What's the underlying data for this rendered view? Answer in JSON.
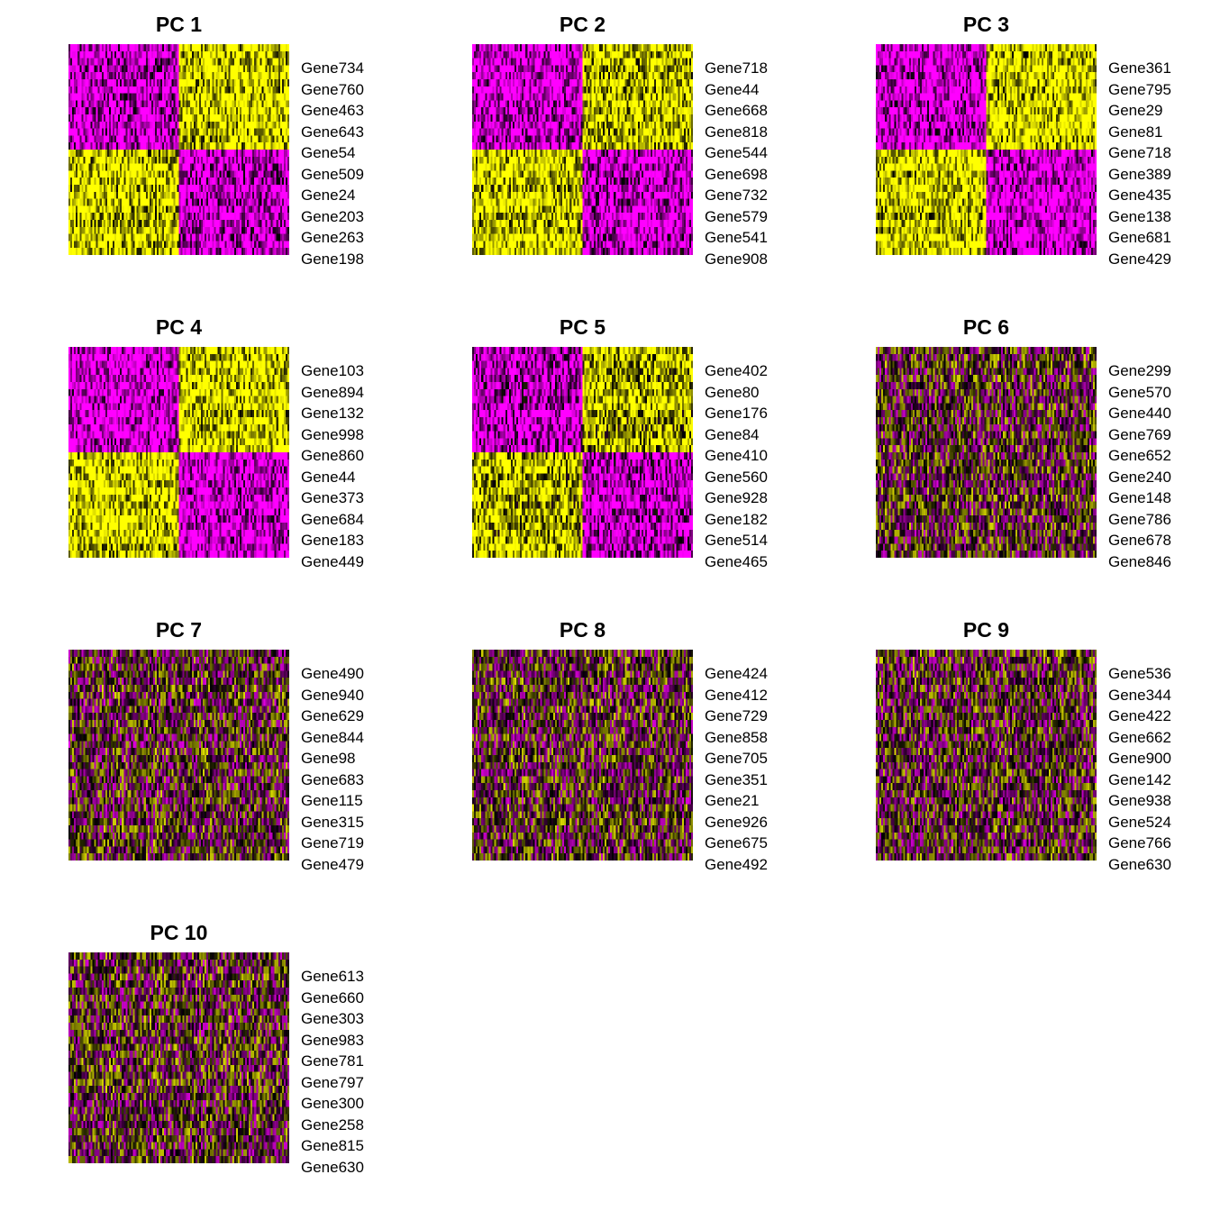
{
  "colors": {
    "low": "#FF00FF",
    "mid": "#000000",
    "high": "#FFFF00",
    "background": "#FFFFFF"
  },
  "chart_data": [
    {
      "type": "heatmap",
      "title": "PC 1",
      "genes": [
        "Gene734",
        "Gene760",
        "Gene463",
        "Gene643",
        "Gene54",
        "Gene509",
        "Gene24",
        "Gene203",
        "Gene263",
        "Gene198"
      ],
      "cell_groups": 2,
      "block_pattern": [
        [
          -1,
          1
        ],
        [
          -1,
          1
        ],
        [
          -1,
          1
        ],
        [
          -1,
          1
        ],
        [
          -1,
          1
        ],
        [
          1,
          -1
        ],
        [
          1,
          -1
        ],
        [
          1,
          -1
        ],
        [
          1,
          -1
        ],
        [
          1,
          -1
        ]
      ],
      "strength": 0.85
    },
    {
      "type": "heatmap",
      "title": "PC 2",
      "genes": [
        "Gene718",
        "Gene44",
        "Gene668",
        "Gene818",
        "Gene544",
        "Gene698",
        "Gene732",
        "Gene579",
        "Gene541",
        "Gene908"
      ],
      "cell_groups": 2,
      "block_pattern": [
        [
          -1,
          1
        ],
        [
          -1,
          1
        ],
        [
          -1,
          1
        ],
        [
          -1,
          1
        ],
        [
          -1,
          1
        ],
        [
          1,
          -1
        ],
        [
          1,
          -1
        ],
        [
          1,
          -1
        ],
        [
          1,
          -1
        ],
        [
          1,
          -1
        ]
      ],
      "strength": 0.85
    },
    {
      "type": "heatmap",
      "title": "PC 3",
      "genes": [
        "Gene361",
        "Gene795",
        "Gene29",
        "Gene81",
        "Gene718",
        "Gene389",
        "Gene435",
        "Gene138",
        "Gene681",
        "Gene429"
      ],
      "cell_groups": 2,
      "block_pattern": [
        [
          -1,
          1
        ],
        [
          -1,
          1
        ],
        [
          -1,
          1
        ],
        [
          -1,
          1
        ],
        [
          -1,
          1
        ],
        [
          1,
          -1
        ],
        [
          1,
          -1
        ],
        [
          1,
          -1
        ],
        [
          1,
          -1
        ],
        [
          1,
          -1
        ]
      ],
      "strength": 0.9
    },
    {
      "type": "heatmap",
      "title": "PC 4",
      "genes": [
        "Gene103",
        "Gene894",
        "Gene132",
        "Gene998",
        "Gene860",
        "Gene44",
        "Gene373",
        "Gene684",
        "Gene183",
        "Gene449"
      ],
      "cell_groups": 2,
      "block_pattern": [
        [
          -1,
          1
        ],
        [
          -1,
          1
        ],
        [
          -1,
          1
        ],
        [
          -1,
          1
        ],
        [
          -1,
          1
        ],
        [
          1,
          -1
        ],
        [
          1,
          -1
        ],
        [
          1,
          -1
        ],
        [
          1,
          -1
        ],
        [
          1,
          -1
        ]
      ],
      "strength": 0.9
    },
    {
      "type": "heatmap",
      "title": "PC 5",
      "genes": [
        "Gene402",
        "Gene80",
        "Gene176",
        "Gene84",
        "Gene410",
        "Gene560",
        "Gene928",
        "Gene182",
        "Gene514",
        "Gene465"
      ],
      "cell_groups": 2,
      "block_pattern": [
        [
          -1,
          1
        ],
        [
          -1,
          1
        ],
        [
          -1,
          1
        ],
        [
          -1,
          1
        ],
        [
          -1,
          1
        ],
        [
          1,
          -1
        ],
        [
          1,
          -1
        ],
        [
          1,
          -1
        ],
        [
          1,
          -1
        ],
        [
          1,
          -1
        ]
      ],
      "strength": 0.75
    },
    {
      "type": "heatmap",
      "title": "PC 6",
      "genes": [
        "Gene299",
        "Gene570",
        "Gene440",
        "Gene769",
        "Gene652",
        "Gene240",
        "Gene148",
        "Gene786",
        "Gene678",
        "Gene846"
      ],
      "cell_groups": 2,
      "block_pattern": null,
      "strength": 0.0
    },
    {
      "type": "heatmap",
      "title": "PC 7",
      "genes": [
        "Gene490",
        "Gene940",
        "Gene629",
        "Gene844",
        "Gene98",
        "Gene683",
        "Gene115",
        "Gene315",
        "Gene719",
        "Gene479"
      ],
      "cell_groups": 2,
      "block_pattern": null,
      "strength": 0.0
    },
    {
      "type": "heatmap",
      "title": "PC 8",
      "genes": [
        "Gene424",
        "Gene412",
        "Gene729",
        "Gene858",
        "Gene705",
        "Gene351",
        "Gene21",
        "Gene926",
        "Gene675",
        "Gene492"
      ],
      "cell_groups": 2,
      "block_pattern": null,
      "strength": 0.0
    },
    {
      "type": "heatmap",
      "title": "PC 9",
      "genes": [
        "Gene536",
        "Gene344",
        "Gene422",
        "Gene662",
        "Gene900",
        "Gene142",
        "Gene938",
        "Gene524",
        "Gene766",
        "Gene630"
      ],
      "cell_groups": 2,
      "block_pattern": null,
      "strength": 0.0
    },
    {
      "type": "heatmap",
      "title": "PC 10",
      "genes": [
        "Gene613",
        "Gene660",
        "Gene303",
        "Gene983",
        "Gene781",
        "Gene797",
        "Gene300",
        "Gene258",
        "Gene815",
        "Gene630"
      ],
      "cell_groups": 2,
      "block_pattern": null,
      "strength": 0.0
    }
  ]
}
